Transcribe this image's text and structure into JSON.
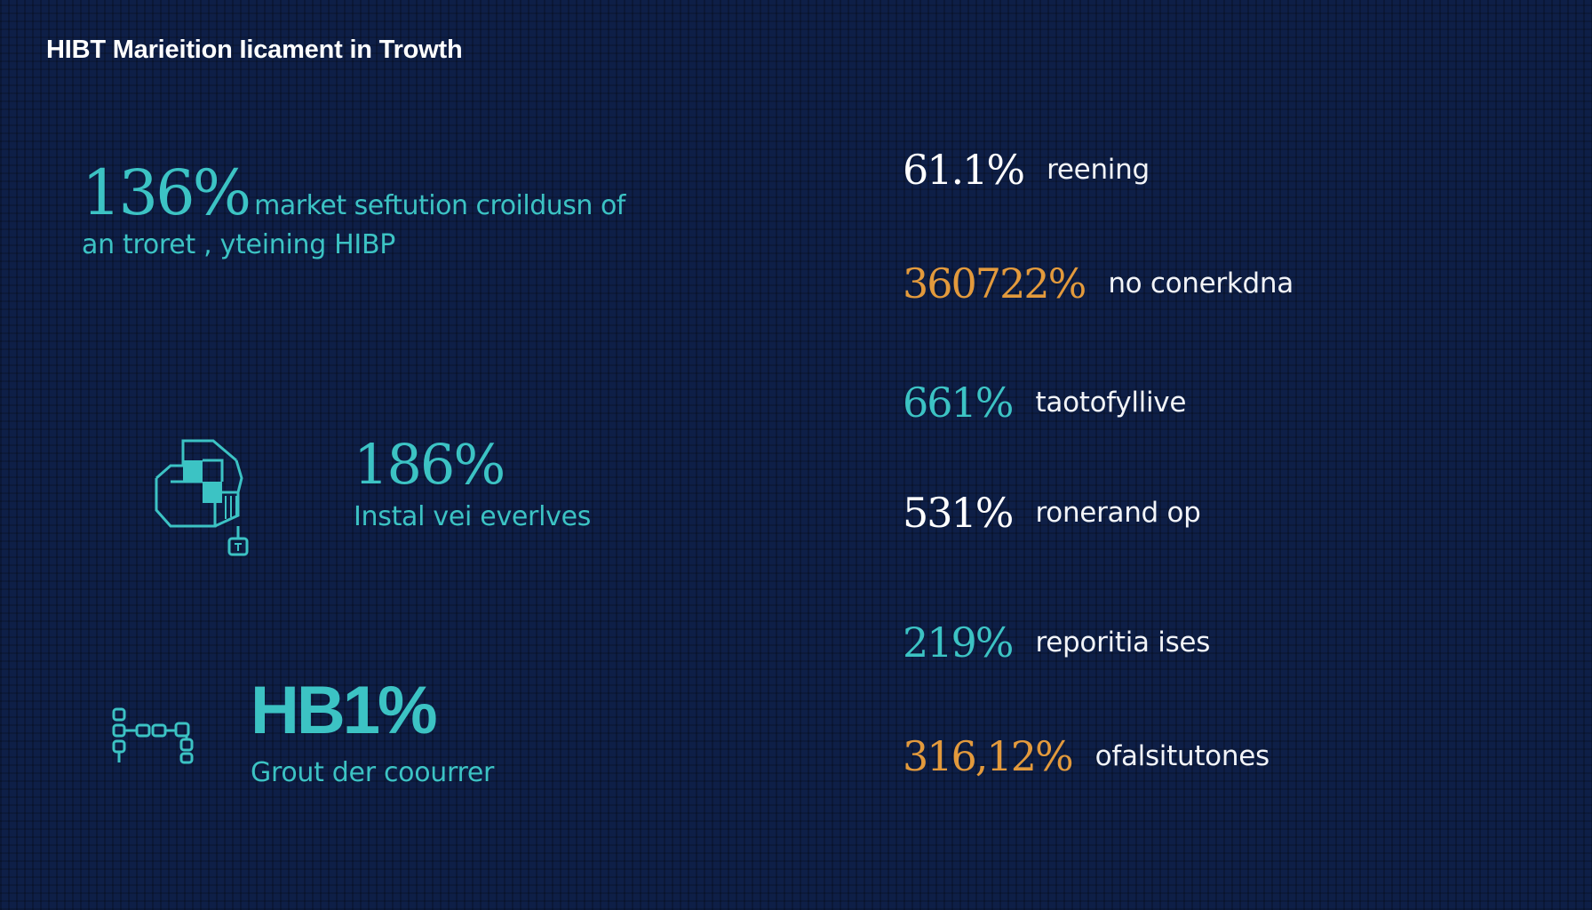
{
  "title": "HIBT Marieition Iicament in Trowth",
  "colors": {
    "background": "#0e1f47",
    "teal": "#3cc3c4",
    "orange": "#e39a3c",
    "white": "#ffffff"
  },
  "left": {
    "stat1": {
      "value": "136%",
      "desc_line1": "market seftution croildusn of",
      "desc_line2": "an troret , yteining HIBP"
    },
    "stat2": {
      "icon": "flowchart-icon",
      "value": "186%",
      "desc": "Instal vei everlves"
    },
    "stat3": {
      "icon": "chain-link-icon",
      "value": "HB1%",
      "desc": "Grout der coourrer"
    }
  },
  "right": [
    {
      "value": "61.1%",
      "label": "reening",
      "color": "#ffffff"
    },
    {
      "value": "360722%",
      "label": "no conerkdna",
      "color": "#e39a3c"
    },
    {
      "value": "661%",
      "label": "taotofyllive",
      "color": "#3cc3c4"
    },
    {
      "value": "531%",
      "label": "ronerand op",
      "color": "#ffffff"
    },
    {
      "value": "219%",
      "label": "reporitia ises",
      "color": "#3cc3c4"
    },
    {
      "value": "316,12%",
      "label": "ofalsitutones",
      "color": "#e39a3c"
    }
  ]
}
